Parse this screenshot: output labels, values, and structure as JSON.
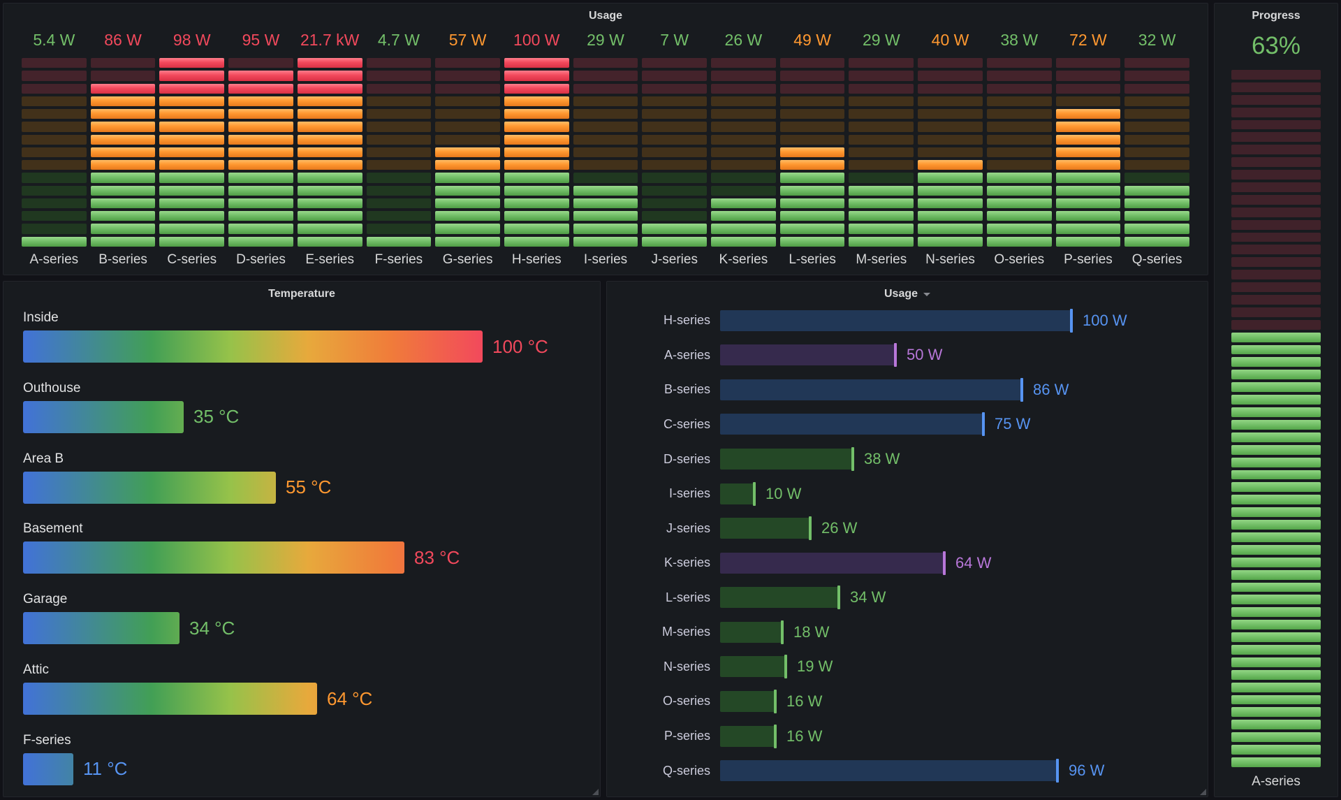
{
  "theme": {
    "bg": "#111217",
    "panel_bg": "#181b1f",
    "green": "#73bf69",
    "orange": "#ff9830",
    "red": "#f2495c",
    "blue": "#5794f2",
    "purple": "#b877d9"
  },
  "top_usage": {
    "title": "Usage",
    "rows_total": 15,
    "zone_red_rows": 3,
    "zone_orange_rows": 6,
    "columns": [
      {
        "label": "A-series",
        "value": "5.4 W",
        "value_color": "green",
        "lit": 1
      },
      {
        "label": "B-series",
        "value": "86 W",
        "value_color": "red",
        "lit": 13
      },
      {
        "label": "C-series",
        "value": "98 W",
        "value_color": "red",
        "lit": 15
      },
      {
        "label": "D-series",
        "value": "95 W",
        "value_color": "red",
        "lit": 14
      },
      {
        "label": "E-series",
        "value": "21.7 kW",
        "value_color": "red",
        "lit": 15
      },
      {
        "label": "F-series",
        "value": "4.7 W",
        "value_color": "green",
        "lit": 1
      },
      {
        "label": "G-series",
        "value": "57 W",
        "value_color": "orange",
        "lit": 8
      },
      {
        "label": "H-series",
        "value": "100 W",
        "value_color": "red",
        "lit": 15
      },
      {
        "label": "I-series",
        "value": "29 W",
        "value_color": "green",
        "lit": 5
      },
      {
        "label": "J-series",
        "value": "7 W",
        "value_color": "green",
        "lit": 2
      },
      {
        "label": "K-series",
        "value": "26 W",
        "value_color": "green",
        "lit": 4
      },
      {
        "label": "L-series",
        "value": "49 W",
        "value_color": "orange",
        "lit": 8
      },
      {
        "label": "M-series",
        "value": "29 W",
        "value_color": "green",
        "lit": 5
      },
      {
        "label": "N-series",
        "value": "40 W",
        "value_color": "orange",
        "lit": 7
      },
      {
        "label": "O-series",
        "value": "38 W",
        "value_color": "green",
        "lit": 6
      },
      {
        "label": "P-series",
        "value": "72 W",
        "value_color": "orange",
        "lit": 11
      },
      {
        "label": "Q-series",
        "value": "32 W",
        "value_color": "green",
        "lit": 5
      }
    ]
  },
  "temperature": {
    "title": "Temperature",
    "max": 100,
    "rows": [
      {
        "label": "Inside",
        "value": 100,
        "display": "100 °C",
        "color": "red"
      },
      {
        "label": "Outhouse",
        "value": 35,
        "display": "35 °C",
        "color": "green"
      },
      {
        "label": "Area B",
        "value": 55,
        "display": "55 °C",
        "color": "orange"
      },
      {
        "label": "Basement",
        "value": 83,
        "display": "83 °C",
        "color": "red"
      },
      {
        "label": "Garage",
        "value": 34,
        "display": "34 °C",
        "color": "green"
      },
      {
        "label": "Attic",
        "value": 64,
        "display": "64 °C",
        "color": "orange"
      },
      {
        "label": "F-series",
        "value": 11,
        "display": "11 °C",
        "color": "blue"
      }
    ]
  },
  "usage_h": {
    "title": "Usage",
    "max": 100,
    "rows": [
      {
        "label": "H-series",
        "value": 100,
        "display": "100 W",
        "color": "blue"
      },
      {
        "label": "A-series",
        "value": 50,
        "display": "50 W",
        "color": "purple"
      },
      {
        "label": "B-series",
        "value": 86,
        "display": "86 W",
        "color": "blue"
      },
      {
        "label": "C-series",
        "value": 75,
        "display": "75 W",
        "color": "blue"
      },
      {
        "label": "D-series",
        "value": 38,
        "display": "38 W",
        "color": "green"
      },
      {
        "label": "I-series",
        "value": 10,
        "display": "10 W",
        "color": "green"
      },
      {
        "label": "J-series",
        "value": 26,
        "display": "26 W",
        "color": "green"
      },
      {
        "label": "K-series",
        "value": 64,
        "display": "64 W",
        "color": "purple"
      },
      {
        "label": "L-series",
        "value": 34,
        "display": "34 W",
        "color": "green"
      },
      {
        "label": "M-series",
        "value": 18,
        "display": "18 W",
        "color": "green"
      },
      {
        "label": "N-series",
        "value": 19,
        "display": "19 W",
        "color": "green"
      },
      {
        "label": "O-series",
        "value": 16,
        "display": "16 W",
        "color": "green"
      },
      {
        "label": "P-series",
        "value": 16,
        "display": "16 W",
        "color": "green"
      },
      {
        "label": "Q-series",
        "value": 96,
        "display": "96 W",
        "color": "blue"
      }
    ]
  },
  "progress": {
    "title": "Progress",
    "value": "63%",
    "percent": 63,
    "series": "A-series",
    "segments": 56
  },
  "chart_data": [
    {
      "type": "bar",
      "variant": "led-gauge",
      "orientation": "vertical",
      "title": "Usage",
      "unit": "W",
      "categories": [
        "A-series",
        "B-series",
        "C-series",
        "D-series",
        "E-series",
        "F-series",
        "G-series",
        "H-series",
        "I-series",
        "J-series",
        "K-series",
        "L-series",
        "M-series",
        "N-series",
        "O-series",
        "P-series",
        "Q-series"
      ],
      "values": [
        5.4,
        86,
        98,
        95,
        21700,
        4.7,
        57,
        100,
        29,
        7,
        26,
        49,
        29,
        40,
        38,
        72,
        32
      ],
      "value_labels": [
        "5.4 W",
        "86 W",
        "98 W",
        "95 W",
        "21.7 kW",
        "4.7 W",
        "57 W",
        "100 W",
        "29 W",
        "7 W",
        "26 W",
        "49 W",
        "29 W",
        "40 W",
        "38 W",
        "72 W",
        "32 W"
      ],
      "ylim": [
        0,
        100
      ],
      "thresholds": {
        "green": [
          0,
          40
        ],
        "orange": [
          40,
          80
        ],
        "red": [
          80,
          100
        ]
      },
      "legend_position": "none",
      "grid": false
    },
    {
      "type": "bar",
      "orientation": "horizontal",
      "title": "Temperature",
      "unit": "°C",
      "categories": [
        "Inside",
        "Outhouse",
        "Area B",
        "Basement",
        "Garage",
        "Attic",
        "F-series"
      ],
      "values": [
        100,
        35,
        55,
        83,
        34,
        64,
        11
      ],
      "value_labels": [
        "100 °C",
        "35 °C",
        "55 °C",
        "83 °C",
        "34 °C",
        "64 °C",
        "11 °C"
      ],
      "xlim": [
        0,
        100
      ],
      "legend_position": "none",
      "grid": false
    },
    {
      "type": "bar",
      "orientation": "horizontal",
      "title": "Usage",
      "unit": "W",
      "categories": [
        "H-series",
        "A-series",
        "B-series",
        "C-series",
        "D-series",
        "I-series",
        "J-series",
        "K-series",
        "L-series",
        "M-series",
        "N-series",
        "O-series",
        "P-series",
        "Q-series"
      ],
      "values": [
        100,
        50,
        86,
        75,
        38,
        10,
        26,
        64,
        34,
        18,
        19,
        16,
        16,
        96
      ],
      "value_labels": [
        "100 W",
        "50 W",
        "86 W",
        "75 W",
        "38 W",
        "10 W",
        "26 W",
        "64 W",
        "34 W",
        "18 W",
        "19 W",
        "16 W",
        "16 W",
        "96 W"
      ],
      "xlim": [
        0,
        100
      ],
      "legend_position": "none",
      "grid": false
    },
    {
      "type": "gauge",
      "variant": "led-gauge",
      "orientation": "vertical",
      "title": "Progress",
      "unit": "%",
      "categories": [
        "A-series"
      ],
      "values": [
        63
      ],
      "value_labels": [
        "63%"
      ],
      "ylim": [
        0,
        100
      ]
    }
  ]
}
